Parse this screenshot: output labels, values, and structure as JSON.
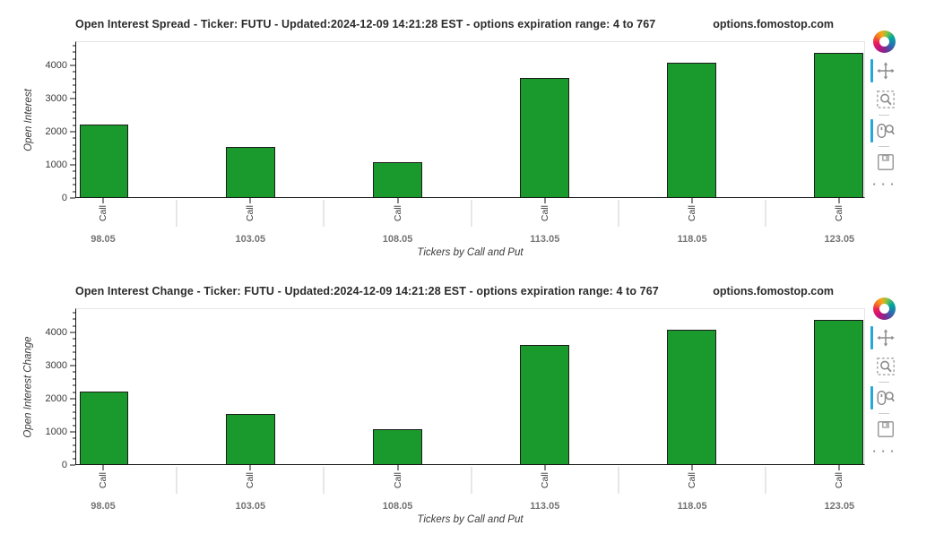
{
  "page": {
    "background": "#ffffff"
  },
  "chart_data": [
    {
      "type": "bar",
      "title": "Open Interest Spread - Ticker: FUTU - Updated:2024-12-09 14:21:28 EST - options expiration range: 4 to 767",
      "brand": "options.fomostop.com",
      "xlabel": "Tickers by Call and Put",
      "ylabel": "Open Interest",
      "categories": [
        "98.05",
        "103.05",
        "108.05",
        "113.05",
        "118.05",
        "123.05"
      ],
      "subcategory": "Call",
      "values": [
        2210,
        1520,
        1070,
        3630,
        4110,
        4400
      ],
      "y_ticks": [
        0,
        1000,
        2000,
        3000,
        4000
      ],
      "ylim": [
        0,
        4730
      ],
      "minor_tick_step": 200,
      "grid": false,
      "legend_position": "none",
      "bar_color": "#1a9a2c",
      "bar_outline_color": "#1c1c1c"
    },
    {
      "type": "bar",
      "title": "Open Interest Change - Ticker: FUTU - Updated:2024-12-09 14:21:28 EST - options expiration range: 4 to 767",
      "brand": "options.fomostop.com",
      "xlabel": "Tickers by Call and Put",
      "ylabel": "Open Interest Change",
      "categories": [
        "98.05",
        "103.05",
        "108.05",
        "113.05",
        "118.05",
        "123.05"
      ],
      "subcategory": "Call",
      "values": [
        2210,
        1520,
        1070,
        3630,
        4110,
        4400
      ],
      "y_ticks": [
        0,
        1000,
        2000,
        3000,
        4000
      ],
      "ylim": [
        0,
        4730
      ],
      "minor_tick_step": 200,
      "grid": false,
      "legend_position": "none",
      "bar_color": "#1a9a2c",
      "bar_outline_color": "#1c1c1c"
    }
  ],
  "toolbar": {
    "active_color": "#26a7dc",
    "ellipsis_label": "· · ·",
    "tools": [
      {
        "icon": "pan-icon",
        "active": true
      },
      {
        "icon": "box-zoom-icon",
        "active": false
      },
      {
        "icon": "wheel-zoom-icon",
        "active": true
      },
      {
        "icon": "save-icon",
        "active": false
      },
      {
        "icon": "hover-icon",
        "active": false
      }
    ]
  }
}
